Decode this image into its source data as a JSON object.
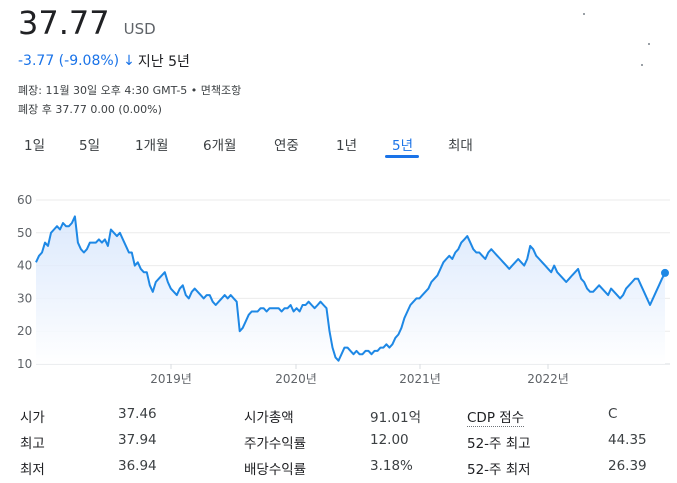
{
  "quote": {
    "price": "37.77",
    "currency": "USD",
    "change": "-3.77 (-9.08%)",
    "arrow": "↓",
    "period": "지난 5년",
    "close_info": "폐장: 11월 30일 오후 4:30 GMT-5 • 면책조항",
    "after_hours": "폐장 후 37.77 0.00 (0.00%)"
  },
  "tabs": [
    {
      "label": "1일",
      "active": false
    },
    {
      "label": "5일",
      "active": false
    },
    {
      "label": "1개월",
      "active": false
    },
    {
      "label": "6개월",
      "active": false
    },
    {
      "label": "연중",
      "active": false
    },
    {
      "label": "1년",
      "active": false
    },
    {
      "label": "5년",
      "active": true
    },
    {
      "label": "최대",
      "active": false
    }
  ],
  "colors": {
    "accent": "#1a73e8",
    "line": "#1e88e5",
    "area_top": "#d2e3fc",
    "grid": "#ebebeb"
  },
  "chart_data": {
    "type": "area",
    "x_labels": [
      "2019년",
      "2020년",
      "2021년",
      "2022년"
    ],
    "y_ticks": [
      10,
      20,
      30,
      40,
      50,
      60
    ],
    "ylim": [
      10,
      60
    ],
    "series": [
      {
        "values": [
          41,
          43,
          44,
          47,
          46,
          50,
          51,
          52,
          51,
          53,
          52,
          52,
          53,
          55,
          47,
          45,
          44,
          45,
          47,
          47,
          47,
          48,
          47,
          48,
          46,
          51,
          50,
          49,
          50,
          48,
          46,
          44,
          44,
          40,
          41,
          39,
          38,
          38,
          34,
          32,
          35,
          36,
          37,
          38,
          35,
          33,
          32,
          31,
          33,
          34,
          31,
          30,
          32,
          33,
          32,
          31,
          30,
          31,
          31,
          29,
          28,
          29,
          30,
          31,
          30,
          31,
          30,
          29,
          20,
          21,
          23,
          25,
          26,
          26,
          26,
          27,
          27,
          26,
          27,
          27,
          27,
          27,
          26,
          27,
          27,
          28,
          26,
          27,
          26,
          28,
          28,
          29,
          28,
          27,
          28,
          29,
          28,
          27,
          20,
          15,
          12,
          11,
          13,
          15,
          15,
          14,
          13,
          14,
          13,
          13,
          14,
          14,
          13,
          14,
          14,
          15,
          15,
          16,
          15,
          16,
          18,
          19,
          21,
          24,
          26,
          28,
          29,
          30,
          30,
          31,
          32,
          33,
          35,
          36,
          37,
          39,
          41,
          42,
          43,
          42,
          44,
          45,
          47,
          48,
          49,
          47,
          45,
          44,
          44,
          43,
          42,
          44,
          45,
          44,
          43,
          42,
          41,
          40,
          39,
          40,
          41,
          42,
          41,
          40,
          42,
          46,
          45,
          43,
          42,
          41,
          40,
          39,
          38,
          40,
          38,
          37,
          36,
          35,
          36,
          37,
          38,
          39,
          36,
          35,
          33,
          32,
          32,
          33,
          34,
          33,
          32,
          31,
          33,
          32,
          31,
          30,
          31,
          33,
          34,
          35,
          36,
          36,
          34,
          32,
          30,
          28,
          30,
          32,
          34,
          36,
          37.77
        ]
      }
    ]
  },
  "stats": [
    [
      {
        "label": "시가",
        "value": "37.46"
      },
      {
        "label": "시가총액",
        "value": "91.01억"
      },
      {
        "label": "CDP 점수",
        "value": "C"
      }
    ],
    [
      {
        "label": "최고",
        "value": "37.94"
      },
      {
        "label": "주가수익률",
        "value": "12.00"
      },
      {
        "label": "52-주 최고",
        "value": "44.35"
      }
    ],
    [
      {
        "label": "최저",
        "value": "36.94"
      },
      {
        "label": "배당수익률",
        "value": "3.18%"
      },
      {
        "label": "52-주 최저",
        "value": "26.39"
      }
    ]
  ]
}
